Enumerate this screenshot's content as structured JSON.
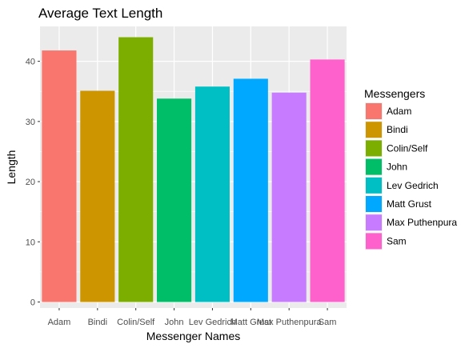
{
  "chart_data": {
    "type": "bar",
    "title": "Average Text Length",
    "xlabel": "Messenger Names",
    "ylabel": "Length",
    "categories": [
      "Adam",
      "Bindi",
      "Colin/Self",
      "John",
      "Lev Gedrich",
      "Matt Grust",
      "Max Puthenpura",
      "Sam"
    ],
    "values": [
      41.8,
      35.1,
      44.0,
      33.8,
      35.8,
      37.1,
      34.8,
      40.3
    ],
    "colors": [
      "#F8766D",
      "#CD9600",
      "#7CAE00",
      "#00BE67",
      "#00BFC4",
      "#00A9FF",
      "#C77CFF",
      "#FF61CC"
    ],
    "ylim": [
      -1,
      45.8
    ],
    "yticks": [
      0,
      10,
      20,
      30,
      40
    ],
    "grid": true,
    "legend": {
      "title": "Messengers",
      "position": "right",
      "entries": [
        "Adam",
        "Bindi",
        "Colin/Self",
        "John",
        "Lev Gedrich",
        "Matt Grust",
        "Max Puthenpura",
        "Sam"
      ]
    }
  }
}
